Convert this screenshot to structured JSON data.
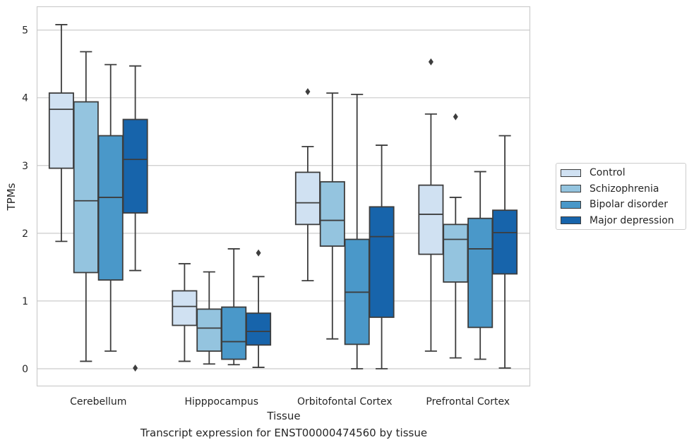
{
  "chart_data": {
    "type": "box",
    "xlabel": "Tissue",
    "ylabel": "TPMs",
    "caption": "Transcript expression for ENST00000474560 by tissue",
    "ylim": [
      -0.25,
      5.35
    ],
    "yticks": [
      0,
      1,
      2,
      3,
      4,
      5
    ],
    "grid": "horizontal",
    "legend_position": "right",
    "categories": [
      "Cerebellum",
      "Hipppocampus",
      "Orbitofontal Cortex",
      "Prefrontal Cortex"
    ],
    "series": [
      {
        "name": "Control",
        "color": "#d0e1f2",
        "boxes": [
          {
            "whisker_low": 1.88,
            "q1": 2.96,
            "median": 3.83,
            "q3": 4.07,
            "whisker_high": 5.08,
            "outliers": []
          },
          {
            "whisker_low": 0.11,
            "q1": 0.64,
            "median": 0.92,
            "q3": 1.15,
            "whisker_high": 1.55,
            "outliers": []
          },
          {
            "whisker_low": 1.3,
            "q1": 2.13,
            "median": 2.45,
            "q3": 2.9,
            "whisker_high": 3.28,
            "outliers": [
              4.09
            ]
          },
          {
            "whisker_low": 0.26,
            "q1": 1.69,
            "median": 2.28,
            "q3": 2.71,
            "whisker_high": 3.76,
            "outliers": [
              4.53
            ]
          }
        ]
      },
      {
        "name": "Schizophrenia",
        "color": "#94c4df",
        "boxes": [
          {
            "whisker_low": 0.11,
            "q1": 1.42,
            "median": 2.48,
            "q3": 3.94,
            "whisker_high": 4.68,
            "outliers": []
          },
          {
            "whisker_low": 0.07,
            "q1": 0.26,
            "median": 0.6,
            "q3": 0.88,
            "whisker_high": 1.43,
            "outliers": []
          },
          {
            "whisker_low": 0.44,
            "q1": 1.81,
            "median": 2.19,
            "q3": 2.76,
            "whisker_high": 4.07,
            "outliers": []
          },
          {
            "whisker_low": 0.16,
            "q1": 1.28,
            "median": 1.91,
            "q3": 2.13,
            "whisker_high": 2.53,
            "outliers": [
              3.72
            ]
          }
        ]
      },
      {
        "name": "Bipolar disorder",
        "color": "#4a98c9",
        "boxes": [
          {
            "whisker_low": 0.26,
            "q1": 1.31,
            "median": 2.53,
            "q3": 3.44,
            "whisker_high": 4.49,
            "outliers": []
          },
          {
            "whisker_low": 0.06,
            "q1": 0.14,
            "median": 0.4,
            "q3": 0.91,
            "whisker_high": 1.77,
            "outliers": []
          },
          {
            "whisker_low": 0.0,
            "q1": 0.36,
            "median": 1.13,
            "q3": 1.91,
            "whisker_high": 4.05,
            "outliers": []
          },
          {
            "whisker_low": 0.14,
            "q1": 0.61,
            "median": 1.77,
            "q3": 2.22,
            "whisker_high": 2.91,
            "outliers": []
          }
        ]
      },
      {
        "name": "Major depression",
        "color": "#1764ab",
        "boxes": [
          {
            "whisker_low": 1.45,
            "q1": 2.3,
            "median": 3.09,
            "q3": 3.68,
            "whisker_high": 4.47,
            "outliers": [
              0.01
            ]
          },
          {
            "whisker_low": 0.02,
            "q1": 0.35,
            "median": 0.55,
            "q3": 0.82,
            "whisker_high": 1.36,
            "outliers": [
              1.71
            ]
          },
          {
            "whisker_low": 0.0,
            "q1": 0.76,
            "median": 1.95,
            "q3": 2.39,
            "whisker_high": 3.3,
            "outliers": []
          },
          {
            "whisker_low": 0.01,
            "q1": 1.4,
            "median": 2.01,
            "q3": 2.34,
            "whisker_high": 3.44,
            "outliers": []
          }
        ]
      }
    ]
  }
}
